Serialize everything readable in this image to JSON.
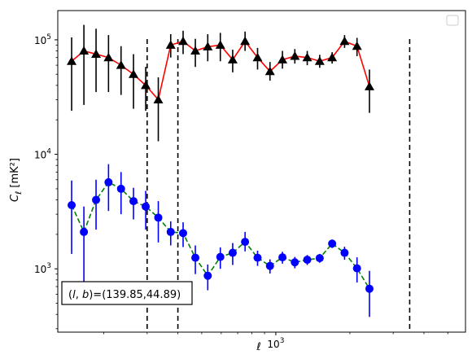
{
  "chart_data": {
    "type": "scatter",
    "title": "",
    "xlabel": "ℓ",
    "ylabel": "C_ℓ [mK²]",
    "xscale": "log",
    "yscale": "log",
    "xlim": [
      130,
      5900
    ],
    "ylim": [
      280,
      180000
    ],
    "grid": false,
    "legend": "top-right (empty box)",
    "annotation": "(l, b)=(139.85,44.89)",
    "vlines": [
      300,
      400,
      3500
    ],
    "x_ticks": [
      {
        "value": 1000,
        "base": "10",
        "exp": "3"
      }
    ],
    "y_ticks": [
      {
        "value": 1000,
        "base": "10",
        "exp": "3"
      },
      {
        "value": 10000,
        "base": "10",
        "exp": "4"
      },
      {
        "value": 100000,
        "base": "10",
        "exp": "5"
      }
    ],
    "series": [
      {
        "marker": "triangle",
        "color": "#000000",
        "line_color": "#ff0000",
        "line_style": "solid",
        "points": [
          {
            "x": 148,
            "y": 65000,
            "lo": 24000,
            "hi": 105000
          },
          {
            "x": 166,
            "y": 80000,
            "lo": 27000,
            "hi": 135000
          },
          {
            "x": 186,
            "y": 75000,
            "lo": 35000,
            "hi": 125000
          },
          {
            "x": 209,
            "y": 70000,
            "lo": 35000,
            "hi": 110000
          },
          {
            "x": 235,
            "y": 60000,
            "lo": 33000,
            "hi": 88000
          },
          {
            "x": 264,
            "y": 50000,
            "lo": 25000,
            "hi": 75000
          },
          {
            "x": 296,
            "y": 40000,
            "lo": 24000,
            "hi": 58000
          },
          {
            "x": 333,
            "y": 30000,
            "lo": 13000,
            "hi": 47000
          },
          {
            "x": 374,
            "y": 90000,
            "lo": 70000,
            "hi": 112000
          },
          {
            "x": 420,
            "y": 97000,
            "lo": 75000,
            "hi": 120000
          },
          {
            "x": 471,
            "y": 80000,
            "lo": 58000,
            "hi": 102000
          },
          {
            "x": 529,
            "y": 87000,
            "lo": 65000,
            "hi": 112000
          },
          {
            "x": 595,
            "y": 90000,
            "lo": 65000,
            "hi": 115000
          },
          {
            "x": 668,
            "y": 67000,
            "lo": 52000,
            "hi": 82000
          },
          {
            "x": 750,
            "y": 97000,
            "lo": 80000,
            "hi": 118000
          },
          {
            "x": 843,
            "y": 70000,
            "lo": 55000,
            "hi": 85000
          },
          {
            "x": 947,
            "y": 53000,
            "lo": 44000,
            "hi": 64000
          },
          {
            "x": 1064,
            "y": 67000,
            "lo": 56000,
            "hi": 80000
          },
          {
            "x": 1195,
            "y": 72000,
            "lo": 62000,
            "hi": 83000
          },
          {
            "x": 1342,
            "y": 70000,
            "lo": 60000,
            "hi": 80000
          },
          {
            "x": 1508,
            "y": 65000,
            "lo": 57000,
            "hi": 74000
          },
          {
            "x": 1694,
            "y": 70000,
            "lo": 62000,
            "hi": 78000
          },
          {
            "x": 1903,
            "y": 97000,
            "lo": 85000,
            "hi": 110000
          },
          {
            "x": 2138,
            "y": 88000,
            "lo": 72000,
            "hi": 104000
          },
          {
            "x": 2402,
            "y": 39000,
            "lo": 23000,
            "hi": 55000
          }
        ]
      },
      {
        "marker": "circle",
        "color": "#0000ff",
        "line_color": "#008000",
        "line_style": "dashed",
        "points": [
          {
            "x": 148,
            "y": 3600,
            "lo": 1350,
            "hi": 5900
          },
          {
            "x": 166,
            "y": 2100,
            "lo": 720,
            "hi": 3500
          },
          {
            "x": 186,
            "y": 4000,
            "lo": 2200,
            "hi": 6000
          },
          {
            "x": 209,
            "y": 5700,
            "lo": 3200,
            "hi": 8200
          },
          {
            "x": 235,
            "y": 5000,
            "lo": 3000,
            "hi": 7000
          },
          {
            "x": 264,
            "y": 3900,
            "lo": 2700,
            "hi": 5100
          },
          {
            "x": 296,
            "y": 3500,
            "lo": 2200,
            "hi": 4800
          },
          {
            "x": 333,
            "y": 2800,
            "lo": 1700,
            "hi": 3900
          },
          {
            "x": 374,
            "y": 2100,
            "lo": 1600,
            "hi": 2600
          },
          {
            "x": 420,
            "y": 2050,
            "lo": 1550,
            "hi": 2550
          },
          {
            "x": 471,
            "y": 1250,
            "lo": 900,
            "hi": 1600
          },
          {
            "x": 529,
            "y": 870,
            "lo": 650,
            "hi": 1090
          },
          {
            "x": 595,
            "y": 1270,
            "lo": 1000,
            "hi": 1540
          },
          {
            "x": 668,
            "y": 1380,
            "lo": 1080,
            "hi": 1680
          },
          {
            "x": 750,
            "y": 1720,
            "lo": 1420,
            "hi": 2100
          },
          {
            "x": 843,
            "y": 1250,
            "lo": 1060,
            "hi": 1440
          },
          {
            "x": 947,
            "y": 1060,
            "lo": 910,
            "hi": 1210
          },
          {
            "x": 1064,
            "y": 1260,
            "lo": 1110,
            "hi": 1410
          },
          {
            "x": 1195,
            "y": 1140,
            "lo": 1010,
            "hi": 1270
          },
          {
            "x": 1342,
            "y": 1200,
            "lo": 1080,
            "hi": 1320
          },
          {
            "x": 1508,
            "y": 1240,
            "lo": 1130,
            "hi": 1350
          },
          {
            "x": 1694,
            "y": 1660,
            "lo": 1520,
            "hi": 1800
          },
          {
            "x": 1903,
            "y": 1380,
            "lo": 1200,
            "hi": 1560
          },
          {
            "x": 2138,
            "y": 1010,
            "lo": 760,
            "hi": 1260
          },
          {
            "x": 2402,
            "y": 670,
            "lo": 380,
            "hi": 960
          }
        ]
      }
    ]
  }
}
